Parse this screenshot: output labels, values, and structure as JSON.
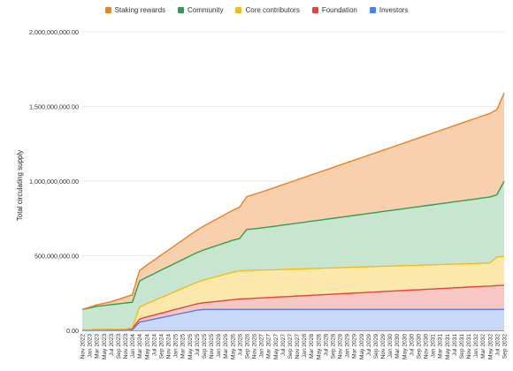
{
  "chart_data": {
    "type": "area",
    "stacked": true,
    "ylabel": "Total circulating supply",
    "xlabel": "",
    "ylim": [
      0,
      2000000000
    ],
    "yticks": [
      "0.00",
      "500,000,000.00",
      "1,000,000,000.00",
      "1,500,000,000.00",
      "2,000,000,000.00"
    ],
    "grid": true,
    "legend_position": "top",
    "x": [
      "Nov 2022",
      "Jan 2023",
      "Mar 2023",
      "May 2023",
      "Jul 2023",
      "Sep 2023",
      "Nov 2023",
      "Jan 2024",
      "Mar 2024",
      "May 2024",
      "Jul 2024",
      "Sep 2024",
      "Nov 2024",
      "Jan 2025",
      "Mar 2025",
      "May 2025",
      "Jul 2025",
      "Sep 2025",
      "Nov 2025",
      "Jan 2026",
      "Mar 2026",
      "May 2026",
      "Jul 2026",
      "Sep 2026",
      "Nov 2026",
      "Jan 2027",
      "Mar 2027",
      "May 2027",
      "Jul 2027",
      "Sep 2027",
      "Nov 2027",
      "Jan 2028",
      "Mar 2028",
      "May 2028",
      "Jul 2028",
      "Sep 2028",
      "Nov 2028",
      "Jan 2029",
      "Mar 2029",
      "May 2029",
      "Jul 2029",
      "Sep 2029",
      "Nov 2029",
      "Jan 2030",
      "Mar 2030",
      "May 2030",
      "Jul 2030",
      "Sep 2030",
      "Nov 2030",
      "Jan 2031",
      "Mar 2031",
      "May 2031",
      "Jul 2031",
      "Sep 2031",
      "Nov 2031",
      "Jan 2032",
      "Mar 2032",
      "May 2032",
      "Jul 2032",
      "Sep 2032"
    ],
    "series": [
      {
        "name": "Investors",
        "color": "#4f81e8",
        "fill": "#c7d8f8",
        "values": [
          0,
          0,
          0,
          0,
          0,
          0,
          0,
          3000000,
          55000000,
          65000000,
          75000000,
          85000000,
          95000000,
          105000000,
          115000000,
          125000000,
          135000000,
          140000000,
          140000000,
          140000000,
          140000000,
          140000000,
          140000000,
          140000000,
          140000000,
          140000000,
          140000000,
          140000000,
          140000000,
          140000000,
          140000000,
          140000000,
          140000000,
          140000000,
          140000000,
          140000000,
          140000000,
          140000000,
          140000000,
          140000000,
          140000000,
          140000000,
          140000000,
          140000000,
          140000000,
          140000000,
          140000000,
          140000000,
          140000000,
          140000000,
          140000000,
          140000000,
          140000000,
          140000000,
          140000000,
          140000000,
          140000000,
          140000000,
          140000000,
          140000000
        ]
      },
      {
        "name": "Foundation",
        "color": "#e8433b",
        "fill": "#f6c7c4",
        "values": [
          5000000,
          5000000,
          6000000,
          6000000,
          7000000,
          7000000,
          8000000,
          10000000,
          20000000,
          25000000,
          27000000,
          30000000,
          32000000,
          35000000,
          37000000,
          40000000,
          42000000,
          45000000,
          50000000,
          55000000,
          60000000,
          65000000,
          70000000,
          72000000,
          75000000,
          77000000,
          80000000,
          82000000,
          85000000,
          87000000,
          90000000,
          92000000,
          95000000,
          97000000,
          100000000,
          102000000,
          105000000,
          107000000,
          110000000,
          112000000,
          115000000,
          117000000,
          120000000,
          122000000,
          125000000,
          127000000,
          130000000,
          132000000,
          135000000,
          137000000,
          140000000,
          142000000,
          145000000,
          147000000,
          150000000,
          152000000,
          155000000,
          157000000,
          160000000,
          162000000
        ]
      },
      {
        "name": "Core contributors",
        "color": "#f5bb1a",
        "fill": "#fce8ad",
        "values": [
          0,
          0,
          0,
          0,
          0,
          0,
          0,
          5000000,
          80000000,
          88000000,
          96000000,
          104000000,
          112000000,
          120000000,
          128000000,
          136000000,
          144000000,
          152000000,
          160000000,
          168000000,
          176000000,
          184000000,
          188000000,
          190000000,
          188000000,
          187000000,
          185000000,
          184000000,
          183000000,
          182000000,
          181000000,
          180000000,
          179000000,
          178000000,
          177000000,
          176000000,
          175000000,
          174000000,
          173000000,
          172000000,
          171000000,
          170000000,
          169000000,
          168000000,
          167000000,
          166000000,
          165000000,
          164000000,
          163000000,
          162000000,
          161000000,
          160000000,
          159000000,
          158000000,
          157000000,
          156000000,
          155000000,
          154000000,
          192000000,
          193000000
        ]
      },
      {
        "name": "Community",
        "color": "#2e9e57",
        "fill": "#c8e5cf",
        "values": [
          135000000,
          145000000,
          155000000,
          160000000,
          165000000,
          170000000,
          175000000,
          170000000,
          175000000,
          178000000,
          181000000,
          184000000,
          187000000,
          190000000,
          193000000,
          196000000,
          199000000,
          202000000,
          205000000,
          208000000,
          211000000,
          214000000,
          217000000,
          274000000,
          277000000,
          282000000,
          287000000,
          292000000,
          297000000,
          302000000,
          307000000,
          312000000,
          317000000,
          322000000,
          327000000,
          332000000,
          337000000,
          342000000,
          347000000,
          352000000,
          357000000,
          362000000,
          367000000,
          372000000,
          377000000,
          382000000,
          387000000,
          392000000,
          397000000,
          402000000,
          407000000,
          412000000,
          417000000,
          422000000,
          427000000,
          432000000,
          437000000,
          442000000,
          417000000,
          505000000
        ]
      },
      {
        "name": "Staking rewards",
        "color": "#f07f1f",
        "fill": "#f9d0ae",
        "values": [
          0,
          5000000,
          10000000,
          15000000,
          20000000,
          30000000,
          40000000,
          50000000,
          70000000,
          80000000,
          90000000,
          100000000,
          110000000,
          120000000,
          130000000,
          140000000,
          150000000,
          160000000,
          170000000,
          180000000,
          190000000,
          200000000,
          210000000,
          220000000,
          230000000,
          240000000,
          250000000,
          260000000,
          270000000,
          280000000,
          290000000,
          300000000,
          310000000,
          320000000,
          330000000,
          340000000,
          350000000,
          360000000,
          370000000,
          380000000,
          390000000,
          400000000,
          410000000,
          420000000,
          430000000,
          440000000,
          450000000,
          460000000,
          470000000,
          480000000,
          490000000,
          500000000,
          510000000,
          520000000,
          530000000,
          540000000,
          550000000,
          560000000,
          570000000,
          590000000
        ]
      }
    ],
    "legend_order": [
      "Staking rewards",
      "Community",
      "Core contributors",
      "Foundation",
      "Investors"
    ]
  }
}
